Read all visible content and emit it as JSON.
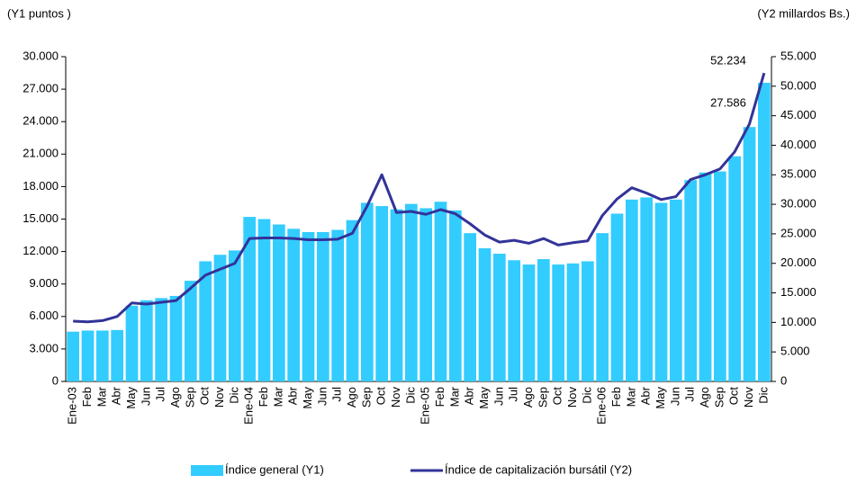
{
  "chart_data": {
    "type": "bar_line",
    "y_axis_label": "(Y1 puntos )",
    "y2_axis_label": "(Y2 millardos Bs.)",
    "categories": [
      "Ene-03",
      "Feb",
      "Mar",
      "Abr",
      "May",
      "Jun",
      "Jul",
      "Ago",
      "Sep",
      "Oct",
      "Nov",
      "Dic",
      "Ene-04",
      "Feb",
      "Mar",
      "Abr",
      "May",
      "Jun",
      "Jul",
      "Ago",
      "Sep",
      "Oct",
      "Nov",
      "Dic",
      "Ene-05",
      "Feb",
      "Mar",
      "Abr",
      "May",
      "Jun",
      "Jul",
      "Ago",
      "Sep",
      "Oct",
      "Nov",
      "Dic",
      "Ene-06",
      "Feb",
      "Mar",
      "Abr",
      "May",
      "Jun",
      "Jul",
      "Ago",
      "Sep",
      "Oct",
      "Nov",
      "Dic"
    ],
    "series": [
      {
        "name": "Índice general (Y1)",
        "type": "bar",
        "color": "#33ccff",
        "values": [
          4600,
          4700,
          4700,
          4750,
          7000,
          7500,
          7700,
          7900,
          9300,
          11100,
          11700,
          12100,
          15200,
          15000,
          14500,
          14100,
          13800,
          13800,
          14000,
          14900,
          16500,
          16200,
          15900,
          16400,
          16000,
          16600,
          15800,
          13700,
          12300,
          11800,
          11200,
          10800,
          11300,
          10800,
          10900,
          11100,
          13700,
          15500,
          16800,
          17000,
          16500,
          16800,
          18600,
          19300,
          19400,
          20800,
          23500,
          27586
        ],
        "value_labels": [
          null,
          null,
          null,
          null,
          null,
          null,
          null,
          null,
          null,
          null,
          null,
          null,
          null,
          null,
          null,
          null,
          null,
          null,
          null,
          null,
          null,
          null,
          null,
          null,
          null,
          null,
          null,
          null,
          null,
          null,
          null,
          null,
          null,
          null,
          null,
          null,
          null,
          null,
          null,
          null,
          null,
          null,
          null,
          null,
          null,
          null,
          null,
          "27.586"
        ]
      },
      {
        "name": "Índice de capitalización bursátil (Y2)",
        "type": "line",
        "axis": "y2",
        "color": "#333399",
        "values": [
          10200,
          10100,
          10300,
          11000,
          13300,
          13100,
          13400,
          13700,
          15800,
          18000,
          19000,
          20000,
          24200,
          24300,
          24300,
          24200,
          24000,
          24000,
          24100,
          25100,
          29700,
          35000,
          28600,
          28800,
          28300,
          29100,
          28400,
          26700,
          24800,
          23600,
          23900,
          23400,
          24200,
          23100,
          23500,
          23800,
          28100,
          30900,
          32800,
          31900,
          30800,
          31300,
          34200,
          35000,
          36000,
          38900,
          43600,
          52234
        ],
        "value_labels": [
          null,
          null,
          null,
          null,
          null,
          null,
          null,
          null,
          null,
          null,
          null,
          null,
          null,
          null,
          null,
          null,
          null,
          null,
          null,
          null,
          null,
          null,
          null,
          null,
          null,
          null,
          null,
          null,
          null,
          null,
          null,
          null,
          null,
          null,
          null,
          null,
          null,
          null,
          null,
          null,
          null,
          null,
          null,
          null,
          null,
          null,
          null,
          "52.234"
        ]
      }
    ],
    "ylim": [
      0,
      30000
    ],
    "yticks": [
      0,
      {
        "value": 3000,
        "label": "3.000"
      },
      {
        "value": 6000,
        "label": "6.000"
      },
      {
        "value": 9000,
        "label": "9.000"
      },
      {
        "value": 12000,
        "label": "12.000"
      },
      {
        "value": 15000,
        "label": "15.000"
      },
      {
        "value": 18000,
        "label": "18.000"
      },
      {
        "value": 21000,
        "label": "21.000"
      },
      {
        "value": 24000,
        "label": "24.000"
      },
      {
        "value": 27000,
        "label": "27.000"
      },
      {
        "value": 30000,
        "label": "30.000"
      }
    ],
    "y2lim": [
      0,
      55000
    ],
    "y2ticks": [
      0,
      {
        "value": 5000,
        "label": "5.000"
      },
      {
        "value": 10000,
        "label": "10.000"
      },
      {
        "value": 15000,
        "label": "15.000"
      },
      {
        "value": 20000,
        "label": "20.000"
      },
      {
        "value": 25000,
        "label": "25.000"
      },
      {
        "value": 30000,
        "label": "30.000"
      },
      {
        "value": 35000,
        "label": "35.000"
      },
      {
        "value": 40000,
        "label": "40.000"
      },
      {
        "value": 45000,
        "label": "45.000"
      },
      {
        "value": 50000,
        "label": "50.000"
      },
      {
        "value": 55000,
        "label": "55.000"
      }
    ]
  }
}
